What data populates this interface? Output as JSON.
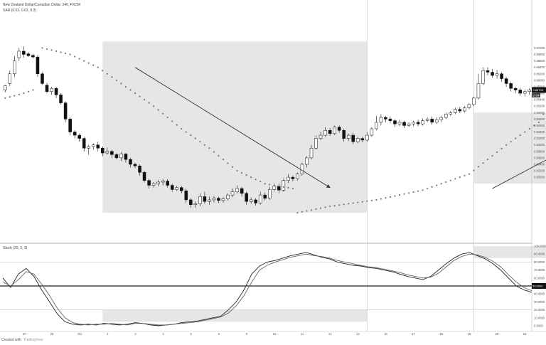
{
  "chart_data": [
    {
      "type": "candlestick",
      "title": "New Zealand Dollar/Canadian Dollar, 240, FXCM",
      "indicator": "SAR (0.02, 0.02, 0.2)",
      "ylim": [
        0.81,
        0.88
      ],
      "y_ticks": [
        "0.87000",
        "0.86800",
        "0.86600",
        "0.86400",
        "0.86200",
        "0.86000",
        "0.85800",
        "0.85600",
        "0.85400",
        "0.85200",
        "0.85000",
        "0.84800",
        "0.84600",
        "0.84400",
        "0.84200",
        "0.84000",
        "0.83800",
        "0.83600",
        "0.83400",
        "0.83200",
        "0.83000"
      ],
      "x_ticks": [
        "27",
        "28",
        "Oct",
        "2",
        "3",
        "4",
        "5",
        "6",
        "9",
        "10",
        "11",
        "12",
        "13",
        "16",
        "17",
        "18",
        "19",
        "20",
        "23"
      ],
      "last_price": "0.85700",
      "last_label": "17:04",
      "candles": [
        [
          0.857,
          0.8583,
          0.8563,
          0.8585
        ],
        [
          0.859,
          0.862,
          0.8582,
          0.863
        ],
        [
          0.862,
          0.866,
          0.861,
          0.8675
        ],
        [
          0.867,
          0.869,
          0.866,
          0.87
        ],
        [
          0.869,
          0.868,
          0.867,
          0.8705
        ],
        [
          0.8682,
          0.8676,
          0.8672,
          0.8688
        ],
        [
          0.8677,
          0.8672,
          0.8668,
          0.8682
        ],
        [
          0.8672,
          0.862,
          0.861,
          0.8678
        ],
        [
          0.862,
          0.859,
          0.8585,
          0.8625
        ],
        [
          0.8585,
          0.8565,
          0.856,
          0.8592
        ],
        [
          0.8565,
          0.8575,
          0.8555,
          0.858
        ],
        [
          0.8575,
          0.8555,
          0.8545,
          0.858
        ],
        [
          0.8555,
          0.853,
          0.8525,
          0.856
        ],
        [
          0.853,
          0.848,
          0.847,
          0.8535
        ],
        [
          0.848,
          0.844,
          0.843,
          0.8485
        ],
        [
          0.844,
          0.843,
          0.842,
          0.8445
        ],
        [
          0.843,
          0.842,
          0.841,
          0.8435
        ],
        [
          0.842,
          0.839,
          0.838,
          0.8425
        ],
        [
          0.839,
          0.8395,
          0.837,
          0.84
        ],
        [
          0.8395,
          0.84,
          0.8385,
          0.8405
        ],
        [
          0.84,
          0.839,
          0.838,
          0.841
        ],
        [
          0.839,
          0.8375,
          0.8365,
          0.8395
        ],
        [
          0.8375,
          0.838,
          0.837,
          0.8392
        ],
        [
          0.838,
          0.837,
          0.836,
          0.8385
        ],
        [
          0.837,
          0.836,
          0.8355,
          0.8375
        ],
        [
          0.836,
          0.8372,
          0.835,
          0.8378
        ],
        [
          0.8372,
          0.8355,
          0.8345,
          0.8375
        ],
        [
          0.8355,
          0.834,
          0.833,
          0.836
        ],
        [
          0.834,
          0.8335,
          0.8328,
          0.8345
        ],
        [
          0.8335,
          0.8315,
          0.8305,
          0.834
        ],
        [
          0.8315,
          0.829,
          0.8283,
          0.832
        ],
        [
          0.829,
          0.8275,
          0.8265,
          0.8295
        ],
        [
          0.8275,
          0.828,
          0.8268,
          0.8285
        ],
        [
          0.828,
          0.8285,
          0.8272,
          0.8292
        ],
        [
          0.8285,
          0.8288,
          0.8275,
          0.8295
        ],
        [
          0.8288,
          0.8275,
          0.8268,
          0.8294
        ],
        [
          0.8275,
          0.8262,
          0.8255,
          0.828
        ],
        [
          0.8262,
          0.8268,
          0.8258,
          0.8273
        ],
        [
          0.8268,
          0.8258,
          0.825,
          0.8272
        ],
        [
          0.8258,
          0.823,
          0.822,
          0.8265
        ],
        [
          0.823,
          0.8215,
          0.8205,
          0.8235
        ],
        [
          0.8215,
          0.8218,
          0.8205,
          0.8225
        ],
        [
          0.8218,
          0.824,
          0.821,
          0.825
        ],
        [
          0.824,
          0.8225,
          0.8218,
          0.8255
        ],
        [
          0.8225,
          0.823,
          0.8215,
          0.824
        ],
        [
          0.823,
          0.8235,
          0.8222,
          0.8242
        ],
        [
          0.8235,
          0.8228,
          0.822,
          0.824
        ],
        [
          0.8228,
          0.8233,
          0.8222,
          0.8238
        ],
        [
          0.8233,
          0.8245,
          0.8228,
          0.825
        ],
        [
          0.8245,
          0.8255,
          0.8238,
          0.8265
        ],
        [
          0.8255,
          0.8265,
          0.825,
          0.8275
        ],
        [
          0.8265,
          0.825,
          0.824,
          0.827
        ],
        [
          0.825,
          0.8225,
          0.8215,
          0.8255
        ],
        [
          0.8225,
          0.823,
          0.8218,
          0.8238
        ],
        [
          0.823,
          0.822,
          0.8212,
          0.8235
        ],
        [
          0.822,
          0.8245,
          0.8215,
          0.8255
        ],
        [
          0.8245,
          0.8235,
          0.8228,
          0.8252
        ],
        [
          0.8235,
          0.8262,
          0.823,
          0.827
        ],
        [
          0.8262,
          0.8272,
          0.8255,
          0.828
        ],
        [
          0.8272,
          0.826,
          0.825,
          0.828
        ],
        [
          0.826,
          0.829,
          0.8255,
          0.8295
        ],
        [
          0.829,
          0.83,
          0.8282,
          0.831
        ],
        [
          0.83,
          0.8295,
          0.8288,
          0.8305
        ],
        [
          0.8295,
          0.831,
          0.829,
          0.8315
        ],
        [
          0.831,
          0.834,
          0.8305,
          0.8345
        ],
        [
          0.834,
          0.836,
          0.833,
          0.8365
        ],
        [
          0.836,
          0.839,
          0.8355,
          0.84
        ],
        [
          0.839,
          0.842,
          0.8385,
          0.843
        ],
        [
          0.842,
          0.843,
          0.8415,
          0.844
        ],
        [
          0.843,
          0.8445,
          0.8425,
          0.8455
        ],
        [
          0.8445,
          0.8435,
          0.8428,
          0.8452
        ],
        [
          0.8435,
          0.8455,
          0.843,
          0.846
        ],
        [
          0.8455,
          0.8445,
          0.8438,
          0.846
        ],
        [
          0.8445,
          0.842,
          0.841,
          0.845
        ],
        [
          0.842,
          0.843,
          0.8412,
          0.8435
        ],
        [
          0.843,
          0.841,
          0.8402,
          0.8438
        ],
        [
          0.841,
          0.842,
          0.8405,
          0.8425
        ],
        [
          0.842,
          0.8415,
          0.8408,
          0.8425
        ],
        [
          0.8415,
          0.843,
          0.841,
          0.844
        ],
        [
          0.843,
          0.845,
          0.8425,
          0.8455
        ],
        [
          0.845,
          0.847,
          0.8445,
          0.849
        ],
        [
          0.847,
          0.8485,
          0.846,
          0.8495
        ],
        [
          0.8485,
          0.848,
          0.847,
          0.849
        ],
        [
          0.848,
          0.8475,
          0.8468,
          0.8488
        ],
        [
          0.8475,
          0.8465,
          0.8455,
          0.848
        ],
        [
          0.8465,
          0.847,
          0.8458,
          0.8478
        ],
        [
          0.847,
          0.846,
          0.8452,
          0.8475
        ],
        [
          0.846,
          0.8465,
          0.8455,
          0.847
        ],
        [
          0.8465,
          0.847,
          0.8458,
          0.8475
        ],
        [
          0.847,
          0.8465,
          0.8458,
          0.8478
        ],
        [
          0.8465,
          0.8475,
          0.846,
          0.8482
        ],
        [
          0.8475,
          0.848,
          0.847,
          0.8485
        ],
        [
          0.848,
          0.847,
          0.8462,
          0.8488
        ],
        [
          0.847,
          0.8478,
          0.8465,
          0.8485
        ],
        [
          0.8478,
          0.8485,
          0.847,
          0.849
        ],
        [
          0.8485,
          0.8495,
          0.848,
          0.85
        ],
        [
          0.8495,
          0.85,
          0.849,
          0.8505
        ],
        [
          0.85,
          0.851,
          0.8495,
          0.8515
        ],
        [
          0.851,
          0.8505,
          0.8498,
          0.8518
        ],
        [
          0.8505,
          0.8515,
          0.85,
          0.852
        ],
        [
          0.8515,
          0.8525,
          0.851,
          0.853
        ],
        [
          0.8525,
          0.8545,
          0.852,
          0.855
        ],
        [
          0.8545,
          0.859,
          0.854,
          0.862
        ],
        [
          0.859,
          0.863,
          0.8585,
          0.864
        ],
        [
          0.863,
          0.8625,
          0.8615,
          0.864
        ],
        [
          0.8625,
          0.8615,
          0.8608,
          0.8635
        ],
        [
          0.8615,
          0.862,
          0.8605,
          0.8632
        ],
        [
          0.862,
          0.8605,
          0.8595,
          0.8625
        ],
        [
          0.8605,
          0.859,
          0.858,
          0.861
        ],
        [
          0.859,
          0.8575,
          0.8565,
          0.8595
        ],
        [
          0.8575,
          0.857,
          0.856,
          0.858
        ],
        [
          0.857,
          0.856,
          0.8552,
          0.8576
        ],
        [
          0.856,
          0.8565,
          0.855,
          0.8572
        ],
        [
          0.8565,
          0.857,
          0.8555,
          0.8575
        ]
      ],
      "sar": [
        [
          0,
          0.8545
        ],
        [
          2,
          0.8552
        ],
        [
          4,
          0.856
        ],
        [
          6,
          0.857
        ],
        [
          8,
          0.87
        ],
        [
          14,
          0.868
        ],
        [
          20,
          0.864
        ],
        [
          26,
          0.858
        ],
        [
          32,
          0.852
        ],
        [
          38,
          0.845
        ],
        [
          44,
          0.839
        ],
        [
          50,
          0.832
        ],
        [
          56,
          0.828
        ],
        [
          62,
          0.8265
        ],
        [
          63,
          0.819
        ],
        [
          70,
          0.821
        ],
        [
          80,
          0.823
        ],
        [
          90,
          0.826
        ],
        [
          100,
          0.831
        ],
        [
          108,
          0.84
        ],
        [
          115,
          0.847
        ],
        [
          116,
          0.8495
        ],
        [
          118,
          0.848
        ],
        [
          122,
          0.844
        ],
        [
          124,
          0.8415
        ],
        [
          126,
          0.843
        ],
        [
          132,
          0.845
        ],
        [
          140,
          0.847
        ],
        [
          150,
          0.849
        ],
        [
          160,
          0.851
        ],
        [
          170,
          0.854
        ],
        [
          178,
          0.857
        ],
        [
          181,
          0.866
        ],
        [
          185,
          0.865
        ]
      ],
      "arrows": [
        [
          28,
          0.864,
          70,
          0.8268
        ],
        [
          105,
          0.8265,
          124,
          0.841
        ],
        [
          129,
          0.843,
          140,
          0.846
        ],
        [
          156,
          0.85,
          175,
          0.856
        ]
      ],
      "shaded_regions": [
        [
          21,
          78,
          0.819,
          0.872
        ],
        [
          101,
          123,
          0.828,
          0.85
        ],
        [
          126,
          141,
          0.843,
          0.858
        ],
        [
          154,
          177,
          0.851,
          0.866
        ]
      ],
      "vertical_lines": [
        78,
        101,
        124,
        126,
        141,
        154,
        177
      ]
    },
    {
      "type": "line",
      "title": "Stoch (20, 3, 3)",
      "ylim": [
        0,
        100
      ],
      "y_ticks": [
        "100.0000",
        "90.0000",
        "80.0000",
        "70.0000",
        "60.0000",
        "50.0000",
        "40.0000",
        "30.0000",
        "20.0000",
        "10.0000",
        "0.0000"
      ],
      "current_value": "50.0000",
      "series": [
        {
          "values": [
            60,
            48,
            65,
            72,
            62,
            45,
            30,
            15,
            5,
            2,
            1,
            2,
            1,
            3,
            2,
            1,
            2,
            4,
            3,
            1,
            0,
            1,
            2,
            4,
            5,
            6,
            8,
            10,
            12,
            20,
            30,
            45,
            65,
            75,
            80,
            82,
            85,
            88,
            90,
            92,
            89,
            86,
            84,
            80,
            78,
            76,
            75,
            73,
            72,
            70,
            68,
            65,
            62,
            60,
            58,
            62,
            70,
            78,
            85,
            90,
            92,
            88,
            84,
            78,
            70,
            60,
            50,
            45,
            42
          ]
        },
        {
          "values": [
            55,
            50,
            58,
            68,
            65,
            52,
            38,
            22,
            10,
            4,
            2,
            1,
            2,
            2,
            3,
            2,
            1,
            3,
            3,
            2,
            1,
            1,
            2,
            3,
            4,
            5,
            7,
            9,
            11,
            16,
            25,
            38,
            55,
            70,
            76,
            80,
            83,
            86,
            88,
            90,
            88,
            87,
            85,
            82,
            80,
            78,
            76,
            74,
            73,
            71,
            69,
            67,
            64,
            62,
            60,
            61,
            66,
            74,
            82,
            87,
            90,
            89,
            86,
            81,
            74,
            64,
            55,
            48,
            44
          ]
        }
      ],
      "shaded_regions": [
        [
          21,
          78,
          5,
          20
        ],
        [
          101,
          123,
          85,
          100
        ],
        [
          126,
          141,
          85,
          100
        ],
        [
          154,
          177,
          85,
          100
        ]
      ],
      "hlines": [
        80,
        20,
        50
      ]
    }
  ],
  "branding": {
    "created_with": "Created with",
    "tradingview": "TradingView"
  }
}
